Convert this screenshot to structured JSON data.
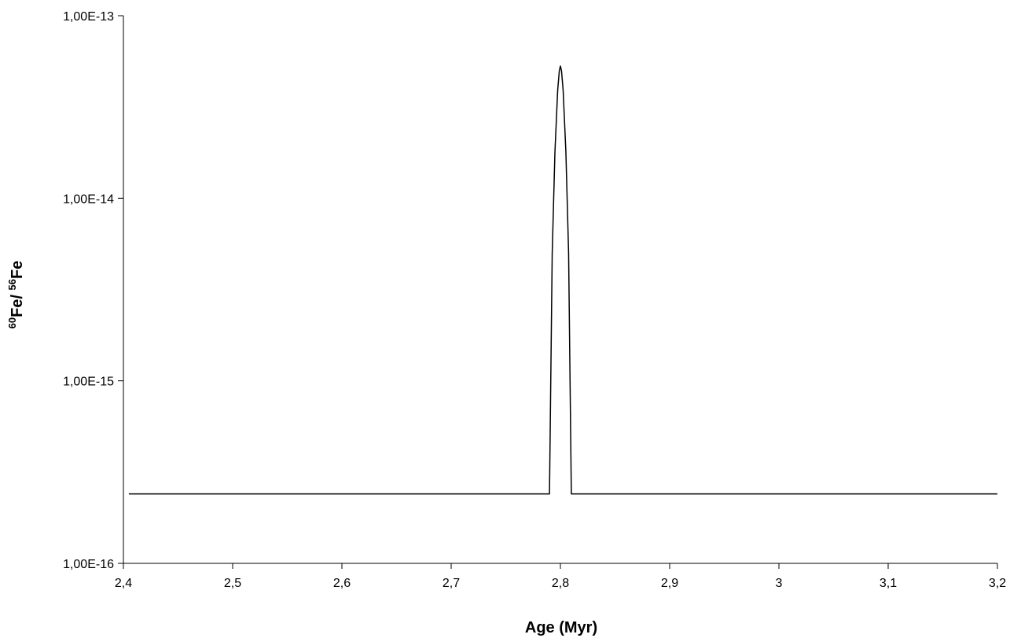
{
  "chart_data": {
    "type": "line",
    "title": "",
    "xlabel": "Age (Myr)",
    "ylabel": {
      "sup1": "60",
      "text1": "Fe/ ",
      "sup2": "56",
      "text2": "Fe"
    },
    "xlim": [
      2.4,
      3.2
    ],
    "ylim": [
      1e-16,
      1e-13
    ],
    "yscale": "log",
    "grid": false,
    "legend": "none",
    "x_ticks": [
      2.4,
      2.5,
      2.6,
      2.7,
      2.8,
      2.9,
      3.0,
      3.1,
      3.2
    ],
    "x_tick_labels": [
      "2,4",
      "2,5",
      "2,6",
      "2,7",
      "2,8",
      "2,9",
      "3",
      "3,1",
      "3,2"
    ],
    "y_ticks": [
      1e-16,
      1e-15,
      1e-14,
      1e-13
    ],
    "y_tick_labels": [
      "1,00E-16",
      "1,00E-15",
      "1,00E-14",
      "1,00E-13"
    ],
    "series": [
      {
        "color": "#000000",
        "x": [
          2.405,
          2.79,
          2.7925,
          2.795,
          2.7975,
          2.799,
          2.8,
          2.801,
          2.8025,
          2.805,
          2.8075,
          2.81,
          3.2
        ],
        "y": [
          2.4e-16,
          2.4e-16,
          5e-15,
          1.8e-14,
          3.9e-14,
          5e-14,
          5.3e-14,
          5e-14,
          3.9e-14,
          1.8e-14,
          5e-15,
          2.4e-16,
          2.4e-16
        ]
      }
    ]
  }
}
